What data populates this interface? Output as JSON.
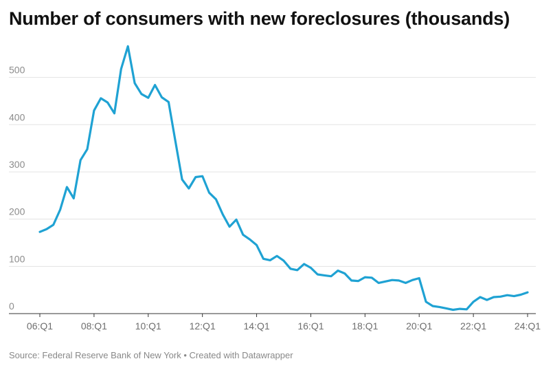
{
  "chart_data": {
    "type": "line",
    "title": "Number of consumers with new foreclosures (thousands)",
    "source": "Source: Federal Reserve Bank of New York • Created with Datawrapper",
    "xlabel": "",
    "ylabel": "",
    "ylim": [
      0,
      565
    ],
    "yticks": [
      0,
      100,
      200,
      300,
      400,
      500
    ],
    "grid": true,
    "legend": "none",
    "line_color": "#1fa2d3",
    "x_tick_labels": [
      "06:Q1",
      "08:Q1",
      "10:Q1",
      "12:Q1",
      "14:Q1",
      "16:Q1",
      "18:Q1",
      "20:Q1",
      "22:Q1",
      "24:Q1"
    ],
    "x_tick_quarters": [
      "2006Q1",
      "2008Q1",
      "2010Q1",
      "2012Q1",
      "2014Q1",
      "2016Q1",
      "2018Q1",
      "2020Q1",
      "2022Q1",
      "2024Q1"
    ],
    "x": [
      "2006Q1",
      "2006Q2",
      "2006Q3",
      "2006Q4",
      "2007Q1",
      "2007Q2",
      "2007Q3",
      "2007Q4",
      "2008Q1",
      "2008Q2",
      "2008Q3",
      "2008Q4",
      "2009Q1",
      "2009Q2",
      "2009Q3",
      "2009Q4",
      "2010Q1",
      "2010Q2",
      "2010Q3",
      "2010Q4",
      "2011Q1",
      "2011Q2",
      "2011Q3",
      "2011Q4",
      "2012Q1",
      "2012Q2",
      "2012Q3",
      "2012Q4",
      "2013Q1",
      "2013Q2",
      "2013Q3",
      "2013Q4",
      "2014Q1",
      "2014Q2",
      "2014Q3",
      "2014Q4",
      "2015Q1",
      "2015Q2",
      "2015Q3",
      "2015Q4",
      "2016Q1",
      "2016Q2",
      "2016Q3",
      "2016Q4",
      "2017Q1",
      "2017Q2",
      "2017Q3",
      "2017Q4",
      "2018Q1",
      "2018Q2",
      "2018Q3",
      "2018Q4",
      "2019Q1",
      "2019Q2",
      "2019Q3",
      "2019Q4",
      "2020Q1",
      "2020Q2",
      "2020Q3",
      "2020Q4",
      "2021Q1",
      "2021Q2",
      "2021Q3",
      "2021Q4",
      "2022Q1",
      "2022Q2",
      "2022Q3",
      "2022Q4",
      "2023Q1",
      "2023Q2",
      "2023Q3",
      "2023Q4",
      "2024Q1"
    ],
    "values": [
      173,
      179,
      188,
      220,
      268,
      244,
      325,
      348,
      430,
      456,
      447,
      424,
      518,
      566,
      488,
      465,
      457,
      484,
      458,
      448,
      366,
      284,
      265,
      289,
      291,
      256,
      242,
      210,
      184,
      199,
      167,
      157,
      145,
      116,
      113,
      122,
      112,
      95,
      92,
      105,
      97,
      83,
      81,
      79,
      91,
      85,
      70,
      69,
      77,
      76,
      65,
      68,
      71,
      70,
      65,
      71,
      75,
      25,
      16,
      14,
      11,
      8,
      10,
      9,
      25,
      35,
      29,
      35,
      36,
      39,
      37,
      40,
      45
    ]
  }
}
